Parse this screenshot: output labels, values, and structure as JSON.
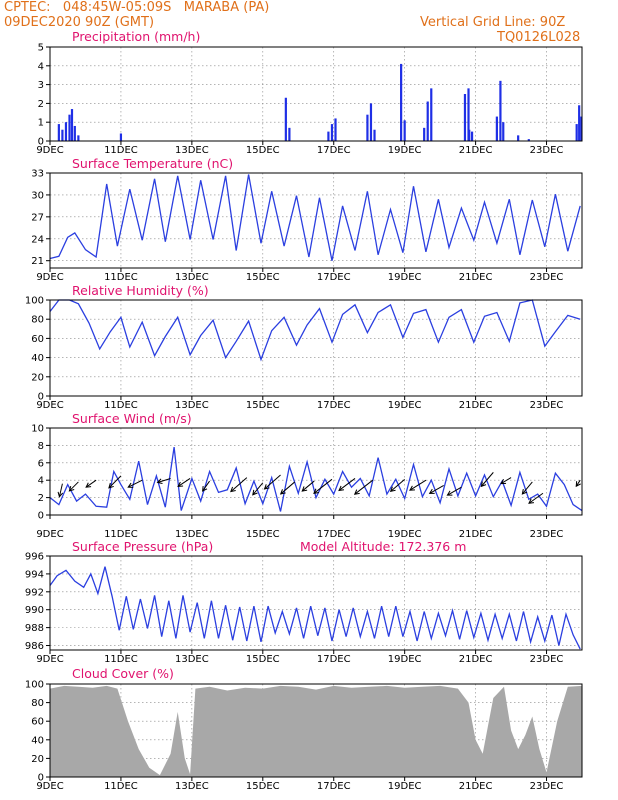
{
  "header": {
    "line1": "CPTEC:   048:45W-05:09S   MARABA (PA)",
    "line2": "09DEC2020 90Z (GMT)",
    "right1": "Vertical Grid Line: 90Z",
    "right2": "TQ0126L028"
  },
  "x_ticks": [
    "9DEC",
    "11DEC",
    "13DEC",
    "15DEC",
    "17DEC",
    "19DEC",
    "21DEC",
    "23DEC"
  ],
  "colors": {
    "line": "#2b3fe0",
    "bar": "#1f2fe6",
    "title": "#e0136e",
    "header": "#e0701a",
    "cloud": "#a8a8a8",
    "wind": "#000000"
  },
  "chart_data": [
    {
      "type": "bar",
      "title": "Precipitation (mm/h)",
      "ylim": [
        0,
        5
      ],
      "yticks": [
        "0",
        "1",
        "2",
        "3",
        "4",
        "5"
      ],
      "x_range_days": [
        9,
        24
      ],
      "bars": [
        {
          "x": 9.25,
          "y": 0.9
        },
        {
          "x": 9.35,
          "y": 0.6
        },
        {
          "x": 9.45,
          "y": 1.0
        },
        {
          "x": 9.55,
          "y": 1.4
        },
        {
          "x": 9.62,
          "y": 1.7
        },
        {
          "x": 9.7,
          "y": 0.8
        },
        {
          "x": 9.8,
          "y": 0.3
        },
        {
          "x": 11.0,
          "y": 0.4
        },
        {
          "x": 15.65,
          "y": 2.3
        },
        {
          "x": 15.75,
          "y": 0.7
        },
        {
          "x": 16.85,
          "y": 0.5
        },
        {
          "x": 16.95,
          "y": 0.9
        },
        {
          "x": 17.05,
          "y": 1.2
        },
        {
          "x": 17.95,
          "y": 1.4
        },
        {
          "x": 18.05,
          "y": 2.0
        },
        {
          "x": 18.15,
          "y": 0.6
        },
        {
          "x": 18.9,
          "y": 4.1
        },
        {
          "x": 19.0,
          "y": 1.1
        },
        {
          "x": 19.55,
          "y": 0.7
        },
        {
          "x": 19.65,
          "y": 2.1
        },
        {
          "x": 19.75,
          "y": 2.8
        },
        {
          "x": 20.7,
          "y": 2.5
        },
        {
          "x": 20.8,
          "y": 2.8
        },
        {
          "x": 20.82,
          "y": 0.6
        },
        {
          "x": 20.9,
          "y": 0.5
        },
        {
          "x": 21.6,
          "y": 1.3
        },
        {
          "x": 21.7,
          "y": 3.2
        },
        {
          "x": 21.78,
          "y": 1.0
        },
        {
          "x": 22.2,
          "y": 0.3
        },
        {
          "x": 22.5,
          "y": 0.1
        },
        {
          "x": 23.85,
          "y": 0.9
        },
        {
          "x": 23.92,
          "y": 1.9
        },
        {
          "x": 23.98,
          "y": 1.3
        }
      ]
    },
    {
      "type": "line",
      "title": "Surface Temperature (nC)",
      "ylim": [
        20,
        33
      ],
      "yticks": [
        "21",
        "24",
        "27",
        "30",
        "33"
      ],
      "x": [
        9.0,
        9.25,
        9.5,
        9.7,
        10.0,
        10.3,
        10.6,
        10.9,
        11.25,
        11.6,
        11.95,
        12.25,
        12.6,
        12.95,
        13.25,
        13.6,
        13.95,
        14.25,
        14.6,
        14.95,
        15.25,
        15.6,
        15.95,
        16.3,
        16.6,
        16.95,
        17.25,
        17.6,
        17.95,
        18.25,
        18.6,
        18.95,
        19.25,
        19.6,
        19.95,
        20.25,
        20.6,
        20.95,
        21.25,
        21.6,
        21.95,
        22.25,
        22.6,
        22.95,
        23.25,
        23.6,
        23.95
      ],
      "y": [
        21.3,
        21.6,
        24.2,
        24.8,
        22.5,
        21.5,
        31.5,
        23.0,
        30.8,
        23.8,
        32.2,
        23.6,
        32.6,
        23.9,
        32.0,
        23.9,
        32.6,
        22.4,
        32.8,
        23.4,
        30.5,
        23.0,
        29.9,
        21.5,
        29.6,
        21.0,
        28.5,
        22.4,
        30.5,
        21.8,
        28.0,
        22.1,
        31.2,
        22.2,
        29.4,
        22.8,
        28.2,
        23.8,
        29.0,
        23.4,
        29.4,
        21.8,
        29.3,
        22.9,
        30.1,
        22.3,
        28.5
      ]
    },
    {
      "type": "line",
      "title": "Relative Humidity (%)",
      "ylim": [
        0,
        100
      ],
      "yticks": [
        "0",
        "20",
        "40",
        "60",
        "80",
        "100"
      ],
      "x": [
        9.0,
        9.25,
        9.55,
        9.8,
        10.1,
        10.4,
        10.7,
        11.0,
        11.25,
        11.6,
        11.95,
        12.25,
        12.6,
        12.95,
        13.25,
        13.6,
        13.95,
        14.25,
        14.6,
        14.95,
        15.25,
        15.6,
        15.95,
        16.25,
        16.6,
        16.95,
        17.25,
        17.6,
        17.95,
        18.25,
        18.6,
        18.95,
        19.25,
        19.6,
        19.95,
        20.25,
        20.6,
        20.95,
        21.25,
        21.6,
        21.95,
        22.25,
        22.6,
        22.95,
        23.25,
        23.6,
        23.95
      ],
      "y": [
        88,
        100,
        100,
        96,
        76,
        49,
        67,
        82,
        51,
        77,
        42,
        62,
        82,
        43,
        63,
        79,
        40,
        57,
        78,
        38,
        68,
        82,
        53,
        74,
        91,
        56,
        85,
        95,
        66,
        87,
        95,
        61,
        86,
        90,
        56,
        82,
        90,
        56,
        83,
        87,
        57,
        97,
        100,
        52,
        67,
        84,
        80
      ]
    },
    {
      "type": "line",
      "title": "Surface Wind (m/s)",
      "ylim": [
        0,
        10
      ],
      "yticks": [
        "0",
        "2",
        "4",
        "6",
        "8",
        "10"
      ],
      "x": [
        9.0,
        9.25,
        9.5,
        9.75,
        10.0,
        10.3,
        10.6,
        10.8,
        11.0,
        11.25,
        11.5,
        11.75,
        12.0,
        12.25,
        12.5,
        12.7,
        13.0,
        13.25,
        13.5,
        13.75,
        14.0,
        14.25,
        14.5,
        14.75,
        15.0,
        15.25,
        15.5,
        15.75,
        16.0,
        16.25,
        16.5,
        16.75,
        17.0,
        17.25,
        17.5,
        17.75,
        18.0,
        18.25,
        18.5,
        18.75,
        19.0,
        19.25,
        19.5,
        19.75,
        20.0,
        20.25,
        20.5,
        20.75,
        21.0,
        21.25,
        21.5,
        21.75,
        22.0,
        22.25,
        22.5,
        22.75,
        23.0,
        23.25,
        23.5,
        23.75,
        24.0
      ],
      "y": [
        2.0,
        1.2,
        3.5,
        1.6,
        2.4,
        1.0,
        0.9,
        5.0,
        3.5,
        1.8,
        6.2,
        1.2,
        4.5,
        0.9,
        7.8,
        0.5,
        4.2,
        1.6,
        5.0,
        2.6,
        2.9,
        5.4,
        1.3,
        3.9,
        1.3,
        4.3,
        0.4,
        5.6,
        2.5,
        6.1,
        2.0,
        4.1,
        2.4,
        5.0,
        3.2,
        4.2,
        2.2,
        6.6,
        2.4,
        4.1,
        1.9,
        5.8,
        2.1,
        4.0,
        1.4,
        5.3,
        2.2,
        4.8,
        2.2,
        4.6,
        2.1,
        3.9,
        1.1,
        4.9,
        1.8,
        2.4,
        1.0,
        4.8,
        3.5,
        1.2,
        0.5
      ],
      "arrows_note": "wind direction barbs",
      "arrows": [
        {
          "x": 9.35,
          "y": 3.6,
          "dx": -3,
          "dy": 13
        },
        {
          "x": 9.8,
          "y": 3.8,
          "dx": -9,
          "dy": 9
        },
        {
          "x": 10.3,
          "y": 4.0,
          "dx": -10,
          "dy": 7
        },
        {
          "x": 11.0,
          "y": 4.5,
          "dx": -12,
          "dy": 12
        },
        {
          "x": 11.6,
          "y": 4.0,
          "dx": -14,
          "dy": 7
        },
        {
          "x": 12.4,
          "y": 4.2,
          "dx": -13,
          "dy": 4
        },
        {
          "x": 12.95,
          "y": 4.2,
          "dx": -12,
          "dy": 8
        },
        {
          "x": 13.5,
          "y": 3.9,
          "dx": -7,
          "dy": 10
        },
        {
          "x": 14.55,
          "y": 4.3,
          "dx": -16,
          "dy": 14
        },
        {
          "x": 15.0,
          "y": 3.7,
          "dx": -10,
          "dy": 12
        },
        {
          "x": 15.5,
          "y": 4.6,
          "dx": -16,
          "dy": 14
        },
        {
          "x": 15.9,
          "y": 3.8,
          "dx": -14,
          "dy": 12
        },
        {
          "x": 16.45,
          "y": 3.9,
          "dx": -12,
          "dy": 10
        },
        {
          "x": 16.95,
          "y": 4.1,
          "dx": -18,
          "dy": 14
        },
        {
          "x": 17.6,
          "y": 4.2,
          "dx": -16,
          "dy": 12
        },
        {
          "x": 18.1,
          "y": 4.0,
          "dx": -18,
          "dy": 14
        },
        {
          "x": 19.0,
          "y": 4.1,
          "dx": -14,
          "dy": 12
        },
        {
          "x": 19.6,
          "y": 4.0,
          "dx": -16,
          "dy": 10
        },
        {
          "x": 20.1,
          "y": 3.4,
          "dx": -14,
          "dy": 8
        },
        {
          "x": 20.6,
          "y": 3.2,
          "dx": -14,
          "dy": 8
        },
        {
          "x": 21.5,
          "y": 4.9,
          "dx": -12,
          "dy": 14
        },
        {
          "x": 22.0,
          "y": 4.3,
          "dx": -10,
          "dy": 6
        },
        {
          "x": 22.6,
          "y": 3.8,
          "dx": -10,
          "dy": 12
        },
        {
          "x": 22.9,
          "y": 2.5,
          "dx": -14,
          "dy": 10
        },
        {
          "x": 23.95,
          "y": 4.0,
          "dx": -4,
          "dy": 6
        }
      ]
    },
    {
      "type": "line",
      "title": "Surface Pressure (hPa)",
      "annotation": "Model Altitude: 172.376 m",
      "ylim": [
        985.5,
        996
      ],
      "yticks": [
        "986",
        "988",
        "990",
        "992",
        "994",
        "996"
      ],
      "x": [
        9.0,
        9.2,
        9.45,
        9.7,
        9.95,
        10.15,
        10.35,
        10.55,
        10.75,
        10.95,
        11.15,
        11.35,
        11.55,
        11.75,
        11.95,
        12.15,
        12.35,
        12.55,
        12.75,
        12.95,
        13.15,
        13.35,
        13.55,
        13.75,
        13.95,
        14.15,
        14.35,
        14.55,
        14.75,
        14.95,
        15.15,
        15.35,
        15.55,
        15.75,
        15.95,
        16.15,
        16.35,
        16.55,
        16.75,
        16.95,
        17.15,
        17.35,
        17.55,
        17.75,
        17.95,
        18.15,
        18.35,
        18.55,
        18.75,
        18.95,
        19.15,
        19.35,
        19.55,
        19.75,
        19.95,
        20.15,
        20.35,
        20.55,
        20.75,
        20.95,
        21.15,
        21.35,
        21.55,
        21.75,
        21.95,
        22.15,
        22.35,
        22.55,
        22.75,
        22.95,
        23.15,
        23.35,
        23.55,
        23.75,
        23.95
      ],
      "y": [
        992.7,
        993.8,
        994.4,
        993.2,
        992.5,
        994.0,
        991.8,
        994.8,
        991.5,
        987.7,
        991.5,
        987.8,
        991.2,
        987.9,
        991.6,
        987.0,
        991.0,
        986.8,
        991.6,
        987.5,
        990.8,
        986.8,
        991.0,
        986.8,
        990.5,
        986.6,
        990.3,
        986.5,
        990.4,
        986.4,
        990.4,
        987.4,
        989.8,
        987.3,
        990.2,
        986.8,
        990.4,
        987.1,
        990.2,
        986.5,
        990.0,
        987.0,
        990.2,
        987.0,
        989.8,
        986.8,
        990.4,
        987.0,
        990.4,
        987.0,
        989.8,
        986.5,
        989.8,
        986.8,
        989.6,
        987.1,
        989.9,
        986.7,
        989.9,
        986.9,
        989.6,
        986.6,
        989.5,
        986.8,
        989.5,
        986.5,
        989.8,
        986.4,
        989.2,
        986.5,
        989.4,
        986.0,
        989.5,
        987.2,
        985.6
      ]
    },
    {
      "type": "area",
      "title": "Cloud Cover (%)",
      "ylim": [
        0,
        100
      ],
      "yticks": [
        "0",
        "20",
        "40",
        "60",
        "80",
        "100"
      ],
      "x": [
        9.0,
        9.4,
        9.8,
        10.2,
        10.6,
        10.9,
        11.2,
        11.5,
        11.8,
        12.1,
        12.4,
        12.6,
        12.8,
        12.95,
        13.1,
        13.5,
        14.0,
        14.5,
        15.0,
        15.5,
        16.0,
        16.5,
        17.0,
        17.5,
        18.0,
        18.5,
        19.0,
        19.5,
        20.0,
        20.5,
        20.8,
        21.0,
        21.2,
        21.5,
        21.8,
        22.0,
        22.2,
        22.4,
        22.6,
        22.8,
        23.0,
        23.3,
        23.6,
        24.0
      ],
      "y": [
        95,
        98,
        97,
        96,
        98,
        95,
        60,
        30,
        10,
        2,
        25,
        70,
        20,
        3,
        95,
        97,
        93,
        96,
        95,
        98,
        97,
        94,
        98,
        96,
        97,
        98,
        96,
        97,
        98,
        95,
        80,
        40,
        25,
        85,
        97,
        50,
        30,
        45,
        65,
        30,
        5,
        60,
        97,
        98
      ]
    }
  ]
}
